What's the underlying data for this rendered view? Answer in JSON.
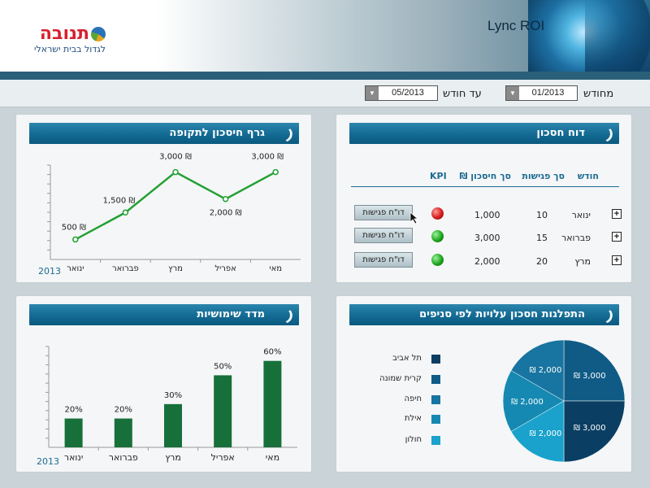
{
  "header": {
    "logo_name": "תנובה",
    "logo_tagline": "לגדול בבית ישראלי",
    "app_title": "Lync ROI"
  },
  "filter": {
    "from_label": "מחודש",
    "from_value": "01/2013",
    "to_label": "עד חודש",
    "to_value": "05/2013"
  },
  "savings_report": {
    "title": "דוח חסכון",
    "columns": [
      "חודש",
      "סך פגישות",
      "סך חיסכון ₪",
      "KPI"
    ],
    "rows": [
      {
        "month": "ינואר",
        "meetings": "10",
        "savings": "1,000",
        "kpi": "red",
        "button": "דו\"ח פגישות"
      },
      {
        "month": "פברואר",
        "meetings": "15",
        "savings": "3,000",
        "kpi": "green",
        "button": "דו\"ח פגישות"
      },
      {
        "month": "מרץ",
        "meetings": "20",
        "savings": "2,000",
        "kpi": "green",
        "button": "דו\"ח פגישות"
      }
    ],
    "colors": {
      "red": "#d41b1b",
      "green": "#1da51d"
    }
  },
  "savings_chart": {
    "title": "גרף חיסכון לתקופה",
    "year": "2013"
  },
  "usage_chart": {
    "title": "מדד שימושיות",
    "year": "2013"
  },
  "distribution": {
    "title": "התפלגות חסכון עלויות לפי סניפים"
  },
  "chart_data": [
    {
      "type": "line",
      "title": "גרף חיסכון לתקופה",
      "categories": [
        "ינואר",
        "פברואר",
        "מרץ",
        "אפריל",
        "מאי"
      ],
      "values": [
        500,
        1500,
        3000,
        2000,
        3000
      ],
      "labels": [
        "₪ 500",
        "₪ 1,500",
        "₪ 3,000",
        "₪ 2,000",
        "₪ 3,000"
      ],
      "ylim": [
        0,
        3500
      ],
      "color": "#22a033"
    },
    {
      "type": "bar",
      "title": "מדד שימושיות",
      "categories": [
        "ינואר",
        "פברואר",
        "מרץ",
        "אפריל",
        "מאי"
      ],
      "values": [
        20,
        20,
        30,
        50,
        60
      ],
      "labels": [
        "20%",
        "20%",
        "30%",
        "50%",
        "60%"
      ],
      "ylim": [
        0,
        70
      ],
      "color": "#17703a"
    },
    {
      "type": "pie",
      "title": "התפלגות חסכון עלויות לפי סניפים",
      "slices": [
        {
          "name": "תל אביב",
          "value": 3000,
          "label": "₪ 3,000",
          "color": "#0f5b86"
        },
        {
          "name": "קרית שמונה",
          "value": 3000,
          "label": "₪ 3,000",
          "color": "#0b3e63"
        },
        {
          "name": "חיפה",
          "value": 2000,
          "label": "₪ 2,000",
          "color": "#1aa2cc"
        },
        {
          "name": "אילת",
          "value": 2000,
          "label": "₪ 2,000",
          "color": "#1689b2"
        },
        {
          "name": "חולון",
          "value": 2000,
          "label": "₪ 2,000",
          "color": "#1874a0"
        }
      ],
      "legend_colors": [
        "#0b3e63",
        "#0f5b86",
        "#1874a0",
        "#1689b2",
        "#1aa2cc"
      ]
    }
  ]
}
